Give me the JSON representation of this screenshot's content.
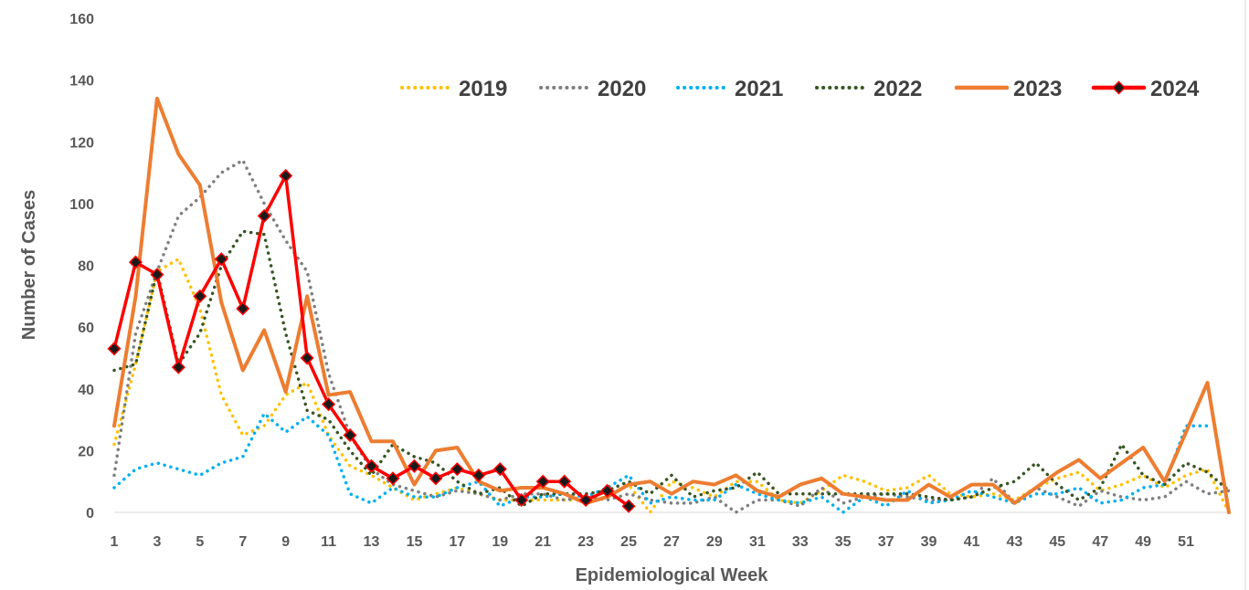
{
  "chart_data": {
    "type": "line",
    "title": "",
    "xlabel": "Epidemiological Week",
    "ylabel": "Number of Cases",
    "xlim": [
      1,
      53
    ],
    "ylim": [
      0,
      160
    ],
    "x_ticks": [
      1,
      3,
      5,
      7,
      9,
      11,
      13,
      15,
      17,
      19,
      21,
      23,
      25,
      27,
      29,
      31,
      33,
      35,
      37,
      39,
      41,
      43,
      45,
      47,
      49,
      51
    ],
    "y_ticks": [
      0,
      20,
      40,
      60,
      80,
      100,
      120,
      140,
      160
    ],
    "grid": false,
    "legend_position": "top-right",
    "series": [
      {
        "name": "2019",
        "color": "#FFC000",
        "style": "dotted",
        "x": [
          1,
          2,
          3,
          4,
          5,
          6,
          7,
          8,
          9,
          10,
          11,
          12,
          13,
          14,
          15,
          16,
          17,
          18,
          19,
          20,
          21,
          22,
          23,
          24,
          25,
          26,
          27,
          28,
          29,
          30,
          31,
          32,
          33,
          34,
          35,
          36,
          37,
          38,
          39,
          40,
          41,
          42,
          43,
          44,
          45,
          46,
          47,
          48,
          49,
          50,
          51,
          52,
          53
        ],
        "values": [
          22,
          48,
          78,
          82,
          66,
          38,
          25,
          28,
          38,
          42,
          25,
          15,
          12,
          8,
          4,
          6,
          8,
          6,
          4,
          4,
          4,
          4,
          4,
          5,
          9,
          0,
          10,
          8,
          5,
          10,
          10,
          4,
          3,
          7,
          12,
          10,
          7,
          8,
          12,
          6,
          5,
          6,
          4,
          8,
          11,
          13,
          7,
          9,
          12,
          8,
          12,
          14,
          0
        ]
      },
      {
        "name": "2020",
        "color": "#7F7F7F",
        "style": "dotted",
        "x": [
          1,
          2,
          3,
          4,
          5,
          6,
          7,
          8,
          9,
          10,
          11,
          12,
          13,
          14,
          15,
          16,
          17,
          18,
          19,
          20,
          21,
          22,
          23,
          24,
          25,
          26,
          27,
          28,
          29,
          30,
          31,
          32,
          33,
          34,
          35,
          36,
          37,
          38,
          39,
          40,
          41,
          42,
          43,
          44,
          45,
          46,
          47,
          48,
          49,
          50,
          51,
          52,
          53
        ],
        "values": [
          12,
          58,
          78,
          96,
          102,
          110,
          114,
          100,
          88,
          78,
          45,
          25,
          14,
          9,
          7,
          5,
          7,
          6,
          4,
          6,
          6,
          4,
          5,
          4,
          6,
          4,
          3,
          3,
          5,
          0,
          4,
          4,
          2,
          8,
          3,
          5,
          6,
          5,
          4,
          4,
          5,
          11,
          3,
          8,
          5,
          2,
          7,
          5,
          4,
          5,
          10,
          6,
          7
        ]
      },
      {
        "name": "2021",
        "color": "#00B0F0",
        "style": "dotted",
        "x": [
          1,
          2,
          3,
          4,
          5,
          6,
          7,
          8,
          9,
          10,
          11,
          12,
          13,
          14,
          15,
          16,
          17,
          18,
          19,
          20,
          21,
          22,
          23,
          24,
          25,
          26,
          27,
          28,
          29,
          30,
          31,
          32,
          33,
          34,
          35,
          36,
          37,
          38,
          39,
          40,
          41,
          42,
          43,
          44,
          45,
          46,
          47,
          48,
          49,
          50,
          51,
          52
        ],
        "values": [
          8,
          14,
          16,
          14,
          12,
          16,
          18,
          32,
          26,
          31,
          25,
          6,
          3,
          8,
          5,
          5,
          8,
          10,
          2,
          5,
          5,
          6,
          5,
          8,
          12,
          3,
          5,
          4,
          4,
          9,
          6,
          4,
          3,
          5,
          0,
          5,
          2,
          7,
          3,
          4,
          7,
          5,
          3,
          6,
          6,
          8,
          3,
          4,
          8,
          9,
          28,
          28
        ]
      },
      {
        "name": "2022",
        "color": "#375623",
        "style": "dotted",
        "x": [
          1,
          2,
          3,
          4,
          5,
          6,
          7,
          8,
          9,
          10,
          11,
          12,
          13,
          14,
          15,
          16,
          17,
          18,
          19,
          20,
          21,
          22,
          23,
          24,
          25,
          26,
          27,
          28,
          29,
          30,
          31,
          32,
          33,
          34,
          35,
          36,
          37,
          38,
          39,
          40,
          41,
          42,
          43,
          44,
          45,
          46,
          47,
          48,
          49,
          50,
          51,
          52,
          53
        ],
        "values": [
          46,
          48,
          78,
          48,
          58,
          80,
          91,
          90,
          58,
          33,
          30,
          20,
          12,
          22,
          18,
          16,
          10,
          6,
          8,
          2,
          6,
          6,
          6,
          7,
          10,
          6,
          12,
          5,
          7,
          8,
          13,
          6,
          6,
          6,
          6,
          6,
          6,
          6,
          5,
          4,
          5,
          8,
          10,
          16,
          9,
          4,
          8,
          22,
          12,
          9,
          16,
          13,
          7
        ]
      },
      {
        "name": "2023",
        "color": "#ED7D31",
        "style": "solid",
        "x": [
          1,
          2,
          3,
          4,
          5,
          6,
          7,
          8,
          9,
          10,
          11,
          12,
          13,
          14,
          15,
          16,
          17,
          18,
          19,
          20,
          21,
          22,
          23,
          24,
          25,
          26,
          27,
          28,
          29,
          30,
          31,
          32,
          33,
          34,
          35,
          36,
          37,
          38,
          39,
          40,
          41,
          42,
          43,
          44,
          45,
          46,
          47,
          48,
          49,
          50,
          51,
          52,
          53
        ],
        "values": [
          28,
          70,
          134,
          116,
          106,
          68,
          46,
          59,
          39,
          70,
          38,
          39,
          23,
          23,
          9,
          20,
          21,
          10,
          7,
          8,
          8,
          6,
          3,
          5,
          9,
          10,
          6,
          10,
          9,
          12,
          7,
          5,
          9,
          11,
          6,
          5,
          4,
          4,
          9,
          5,
          9,
          9,
          3,
          8,
          13,
          17,
          11,
          16,
          21,
          10,
          26,
          42,
          0
        ]
      },
      {
        "name": "2024",
        "color": "#FF0000",
        "style": "solid-marker",
        "x": [
          1,
          2,
          3,
          4,
          5,
          6,
          7,
          8,
          9,
          10,
          11,
          12,
          13,
          14,
          15,
          16,
          17,
          18,
          19,
          20,
          21,
          22,
          23,
          24,
          25
        ],
        "values": [
          53,
          81,
          77,
          47,
          70,
          82,
          66,
          96,
          109,
          50,
          35,
          25,
          15,
          11,
          15,
          11,
          14,
          12,
          14,
          4,
          10,
          10,
          4,
          7,
          2
        ]
      }
    ]
  }
}
